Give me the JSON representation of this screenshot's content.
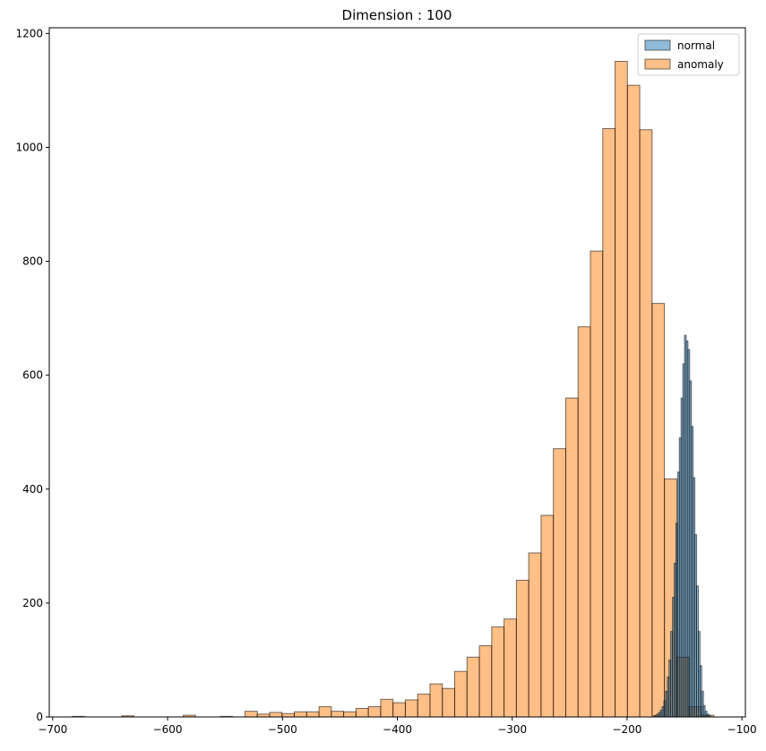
{
  "chart_data": {
    "type": "bar",
    "title": "Dimension : 100",
    "xlabel": "",
    "ylabel": "",
    "xlim": [
      -703,
      -97
    ],
    "ylim": [
      0,
      1210
    ],
    "x_ticks": [
      -700,
      -600,
      -500,
      -400,
      -300,
      -200,
      -100
    ],
    "x_tick_labels": [
      "−700",
      "−600",
      "−500",
      "−400",
      "−300",
      "−200",
      "−100"
    ],
    "y_ticks": [
      0,
      200,
      400,
      600,
      800,
      1000,
      1200
    ],
    "y_tick_labels": [
      "0",
      "200",
      "400",
      "600",
      "800",
      "1000",
      "1200"
    ],
    "grid": false,
    "legend_position": "top-right",
    "series": [
      {
        "name": "normal",
        "color": "#1f77b4",
        "opacity": 0.5,
        "edgecolor": "#000000",
        "bin_start": -177,
        "bin_width": 1.5,
        "values": [
          2,
          3,
          5,
          8,
          12,
          18,
          28,
          45,
          70,
          100,
          150,
          210,
          270,
          340,
          430,
          490,
          560,
          620,
          670,
          660,
          645,
          590,
          510,
          420,
          320,
          230,
          150,
          90,
          45,
          20,
          10,
          5,
          3
        ]
      },
      {
        "name": "anomaly",
        "color": "#ff7f0e",
        "opacity": 0.5,
        "edgecolor": "#000000",
        "bin_start": -683,
        "bin_width": 10.74,
        "values": [
          1,
          0,
          0,
          0,
          2,
          0,
          0,
          0,
          0,
          3,
          0,
          0,
          1,
          0,
          10,
          5,
          8,
          6,
          9,
          9,
          18,
          10,
          9,
          15,
          18,
          31,
          25,
          30,
          40,
          58,
          50,
          80,
          105,
          125,
          158,
          172,
          240,
          288,
          354,
          471,
          560,
          685,
          818,
          1033,
          1151,
          1109,
          1031,
          726,
          418,
          105,
          18,
          3
        ]
      }
    ]
  }
}
